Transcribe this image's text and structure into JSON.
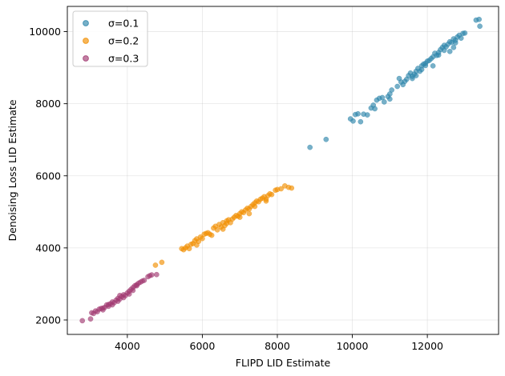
{
  "chart_data": {
    "type": "scatter",
    "title": "",
    "xlabel": "FLIPD LID Estimate",
    "ylabel": "Denoising Loss LID Estimate",
    "xlim": [
      2400,
      13900
    ],
    "ylim": [
      1600,
      10700
    ],
    "xticks": [
      4000,
      6000,
      8000,
      10000,
      12000
    ],
    "yticks": [
      2000,
      4000,
      6000,
      8000,
      10000
    ],
    "grid": true,
    "legend": "top-left",
    "series": [
      {
        "name": "σ=0.1",
        "color": "#2e86ab",
        "points": [
          [
            8870,
            6790
          ],
          [
            9300,
            7010
          ],
          [
            9950,
            7580
          ],
          [
            10020,
            7520
          ],
          [
            10080,
            7700
          ],
          [
            10150,
            7720
          ],
          [
            10220,
            7500
          ],
          [
            10300,
            7710
          ],
          [
            10400,
            7690
          ],
          [
            10500,
            7880
          ],
          [
            10560,
            7960
          ],
          [
            10600,
            7860
          ],
          [
            10650,
            8100
          ],
          [
            10720,
            8150
          ],
          [
            10800,
            8170
          ],
          [
            10850,
            8050
          ],
          [
            10950,
            8200
          ],
          [
            11000,
            8270
          ],
          [
            11050,
            8380
          ],
          [
            11000,
            8130
          ],
          [
            11200,
            8480
          ],
          [
            11250,
            8700
          ],
          [
            11300,
            8600
          ],
          [
            11350,
            8530
          ],
          [
            11400,
            8620
          ],
          [
            11450,
            8680
          ],
          [
            11500,
            8780
          ],
          [
            11550,
            8850
          ],
          [
            11600,
            8760
          ],
          [
            11650,
            8820
          ],
          [
            11700,
            8900
          ],
          [
            11750,
            8980
          ],
          [
            11800,
            8900
          ],
          [
            11850,
            9050
          ],
          [
            11900,
            9100
          ],
          [
            11950,
            9060
          ],
          [
            12000,
            9180
          ],
          [
            12050,
            9200
          ],
          [
            12100,
            9250
          ],
          [
            12150,
            9300
          ],
          [
            12200,
            9400
          ],
          [
            12250,
            9340
          ],
          [
            12300,
            9420
          ],
          [
            12350,
            9500
          ],
          [
            12400,
            9560
          ],
          [
            12450,
            9620
          ],
          [
            12500,
            9580
          ],
          [
            12550,
            9650
          ],
          [
            12600,
            9720
          ],
          [
            12650,
            9700
          ],
          [
            12700,
            9800
          ],
          [
            12750,
            9760
          ],
          [
            12800,
            9850
          ],
          [
            12850,
            9900
          ],
          [
            12900,
            9820
          ],
          [
            12950,
            9950
          ],
          [
            13000,
            9960
          ],
          [
            12700,
            9560
          ],
          [
            12600,
            9450
          ],
          [
            13300,
            10320
          ],
          [
            13380,
            10340
          ],
          [
            13400,
            10150
          ],
          [
            11950,
            9120
          ],
          [
            11600,
            8700
          ],
          [
            12150,
            9050
          ],
          [
            11850,
            8950
          ],
          [
            12300,
            9350
          ],
          [
            12750,
            9690
          ],
          [
            12450,
            9480
          ],
          [
            11700,
            8780
          ]
        ]
      },
      {
        "name": "σ=0.2",
        "color": "#f18f01",
        "points": [
          [
            4750,
            3520
          ],
          [
            4920,
            3600
          ],
          [
            5450,
            3980
          ],
          [
            5500,
            3950
          ],
          [
            5550,
            4000
          ],
          [
            5600,
            4050
          ],
          [
            5650,
            3980
          ],
          [
            5700,
            4100
          ],
          [
            5750,
            4120
          ],
          [
            5800,
            4200
          ],
          [
            5850,
            4250
          ],
          [
            5900,
            4180
          ],
          [
            5950,
            4300
          ],
          [
            6000,
            4260
          ],
          [
            6050,
            4380
          ],
          [
            6100,
            4400
          ],
          [
            6150,
            4420
          ],
          [
            6200,
            4380
          ],
          [
            6300,
            4550
          ],
          [
            6350,
            4600
          ],
          [
            6400,
            4500
          ],
          [
            6450,
            4650
          ],
          [
            6500,
            4580
          ],
          [
            6550,
            4700
          ],
          [
            6600,
            4620
          ],
          [
            6650,
            4750
          ],
          [
            6700,
            4780
          ],
          [
            6750,
            4700
          ],
          [
            6800,
            4800
          ],
          [
            6850,
            4850
          ],
          [
            6900,
            4900
          ],
          [
            6950,
            4880
          ],
          [
            7000,
            4950
          ],
          [
            7050,
            5000
          ],
          [
            7100,
            4980
          ],
          [
            7150,
            5050
          ],
          [
            7200,
            5100
          ],
          [
            7250,
            5080
          ],
          [
            7300,
            5150
          ],
          [
            7350,
            5200
          ],
          [
            7400,
            5250
          ],
          [
            7450,
            5300
          ],
          [
            7500,
            5280
          ],
          [
            7550,
            5350
          ],
          [
            7600,
            5380
          ],
          [
            7650,
            5420
          ],
          [
            7700,
            5350
          ],
          [
            7750,
            5450
          ],
          [
            7800,
            5500
          ],
          [
            7850,
            5480
          ],
          [
            7950,
            5600
          ],
          [
            8000,
            5620
          ],
          [
            8100,
            5640
          ],
          [
            8200,
            5720
          ],
          [
            8300,
            5680
          ],
          [
            8380,
            5660
          ],
          [
            6250,
            4350
          ],
          [
            6550,
            4520
          ],
          [
            7000,
            4850
          ],
          [
            7250,
            4950
          ],
          [
            5850,
            4080
          ],
          [
            6650,
            4680
          ],
          [
            7400,
            5150
          ],
          [
            7700,
            5300
          ]
        ]
      },
      {
        "name": "σ=0.3",
        "color": "#a23b72",
        "points": [
          [
            2800,
            1980
          ],
          [
            3020,
            2030
          ],
          [
            3050,
            2200
          ],
          [
            3100,
            2180
          ],
          [
            3150,
            2250
          ],
          [
            3200,
            2230
          ],
          [
            3250,
            2300
          ],
          [
            3300,
            2320
          ],
          [
            3350,
            2280
          ],
          [
            3400,
            2350
          ],
          [
            3450,
            2420
          ],
          [
            3500,
            2380
          ],
          [
            3550,
            2450
          ],
          [
            3600,
            2500
          ],
          [
            3650,
            2480
          ],
          [
            3700,
            2550
          ],
          [
            3750,
            2600
          ],
          [
            3800,
            2580
          ],
          [
            3850,
            2650
          ],
          [
            3900,
            2700
          ],
          [
            3950,
            2680
          ],
          [
            4000,
            2750
          ],
          [
            4050,
            2800
          ],
          [
            4100,
            2850
          ],
          [
            4150,
            2900
          ],
          [
            4200,
            2950
          ],
          [
            4250,
            2980
          ],
          [
            4300,
            3020
          ],
          [
            4350,
            3050
          ],
          [
            4400,
            3080
          ],
          [
            4450,
            3100
          ],
          [
            4550,
            3200
          ],
          [
            4600,
            3230
          ],
          [
            4650,
            3250
          ],
          [
            4780,
            3260
          ],
          [
            3600,
            2420
          ],
          [
            3750,
            2520
          ],
          [
            3900,
            2620
          ],
          [
            4050,
            2720
          ],
          [
            4150,
            2820
          ],
          [
            3350,
            2330
          ],
          [
            3500,
            2430
          ],
          [
            4250,
            2950
          ],
          [
            3800,
            2680
          ]
        ]
      }
    ]
  }
}
